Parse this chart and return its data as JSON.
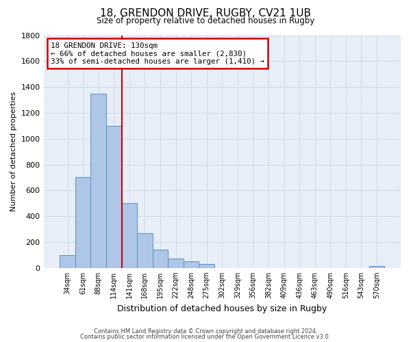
{
  "title": "18, GRENDON DRIVE, RUGBY, CV21 1UB",
  "subtitle": "Size of property relative to detached houses in Rugby",
  "xlabel": "Distribution of detached houses by size in Rugby",
  "ylabel": "Number of detached properties",
  "bar_labels": [
    "34sqm",
    "61sqm",
    "88sqm",
    "114sqm",
    "141sqm",
    "168sqm",
    "195sqm",
    "222sqm",
    "248sqm",
    "275sqm",
    "302sqm",
    "329sqm",
    "356sqm",
    "382sqm",
    "409sqm",
    "436sqm",
    "463sqm",
    "490sqm",
    "516sqm",
    "543sqm",
    "570sqm"
  ],
  "bar_values": [
    100,
    700,
    1350,
    1100,
    500,
    270,
    140,
    75,
    50,
    30,
    0,
    0,
    0,
    0,
    0,
    0,
    0,
    0,
    0,
    0,
    15
  ],
  "bar_color": "#aec6e8",
  "bar_edge_color": "#5a8fc0",
  "ylim": [
    0,
    1800
  ],
  "yticks": [
    0,
    200,
    400,
    600,
    800,
    1000,
    1200,
    1400,
    1600,
    1800
  ],
  "property_line_x": 3.5,
  "annotation_title": "18 GRENDON DRIVE: 130sqm",
  "annotation_line1": "← 66% of detached houses are smaller (2,830)",
  "annotation_line2": "33% of semi-detached houses are larger (1,410) →",
  "annotation_box_color": "#ffffff",
  "annotation_box_edge": "#cc0000",
  "vline_color": "#cc0000",
  "footer1": "Contains HM Land Registry data © Crown copyright and database right 2024.",
  "footer2": "Contains public sector information licensed under the Open Government Licence v3.0.",
  "background_color": "#ffffff",
  "grid_color": "#d0d8e8"
}
